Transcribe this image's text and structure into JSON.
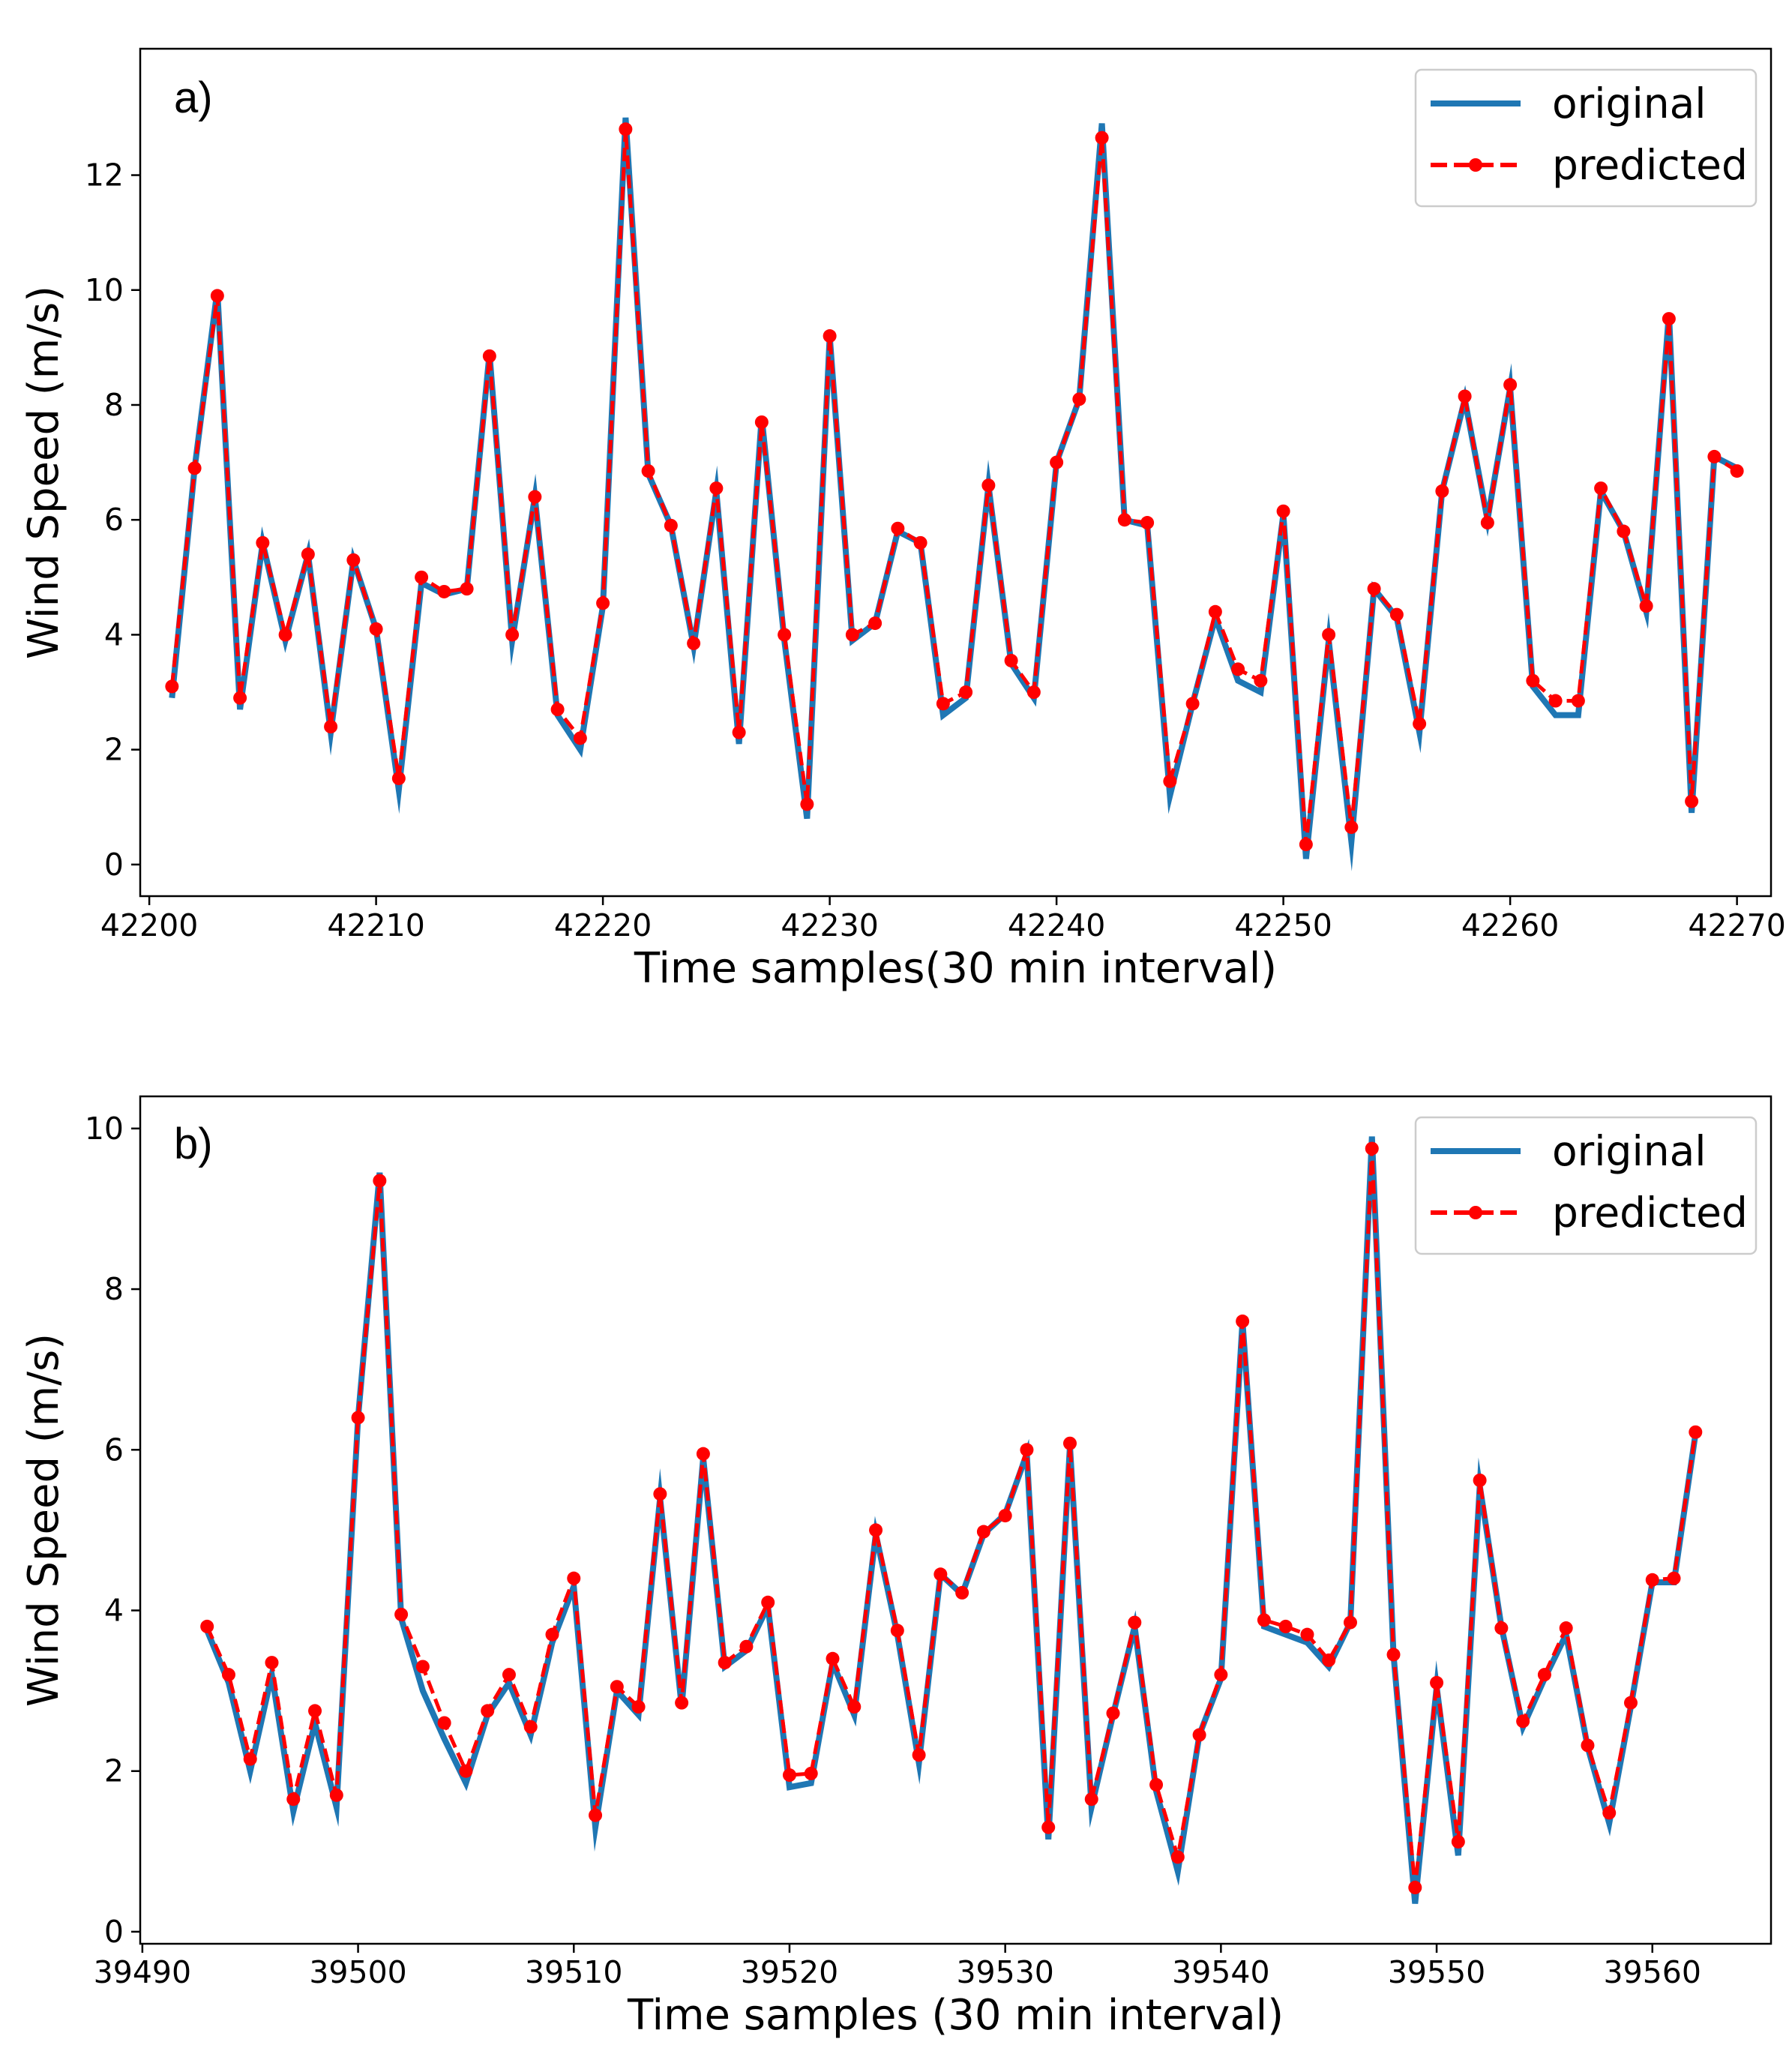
{
  "chart_data": [
    {
      "type": "line",
      "panel_label": "a)",
      "xlabel": "Time samples(30 min interval)",
      "ylabel": "Wind Speed (m/s)",
      "xlim": [
        42199.6,
        42271.5
      ],
      "ylim": [
        -0.55,
        14.2
      ],
      "xticks": [
        42200,
        42210,
        42220,
        42230,
        42240,
        42250,
        42260,
        42270
      ],
      "yticks": [
        0,
        2,
        4,
        6,
        8,
        10,
        12
      ],
      "legend": {
        "position": "top-right",
        "entries": [
          "original",
          "predicted"
        ]
      },
      "colors": {
        "original": "#1f77b4",
        "predicted": "#ff0000"
      },
      "x_start": 42201,
      "series": [
        {
          "name": "original",
          "values": [
            2.9,
            6.9,
            10.0,
            2.7,
            5.6,
            3.9,
            5.4,
            2.3,
            5.3,
            4.1,
            1.3,
            4.9,
            4.7,
            4.8,
            8.9,
            3.9,
            6.4,
            2.6,
            2.0,
            4.5,
            13.0,
            6.8,
            5.9,
            3.8,
            6.5,
            2.1,
            7.8,
            3.9,
            0.8,
            9.2,
            3.9,
            4.2,
            5.8,
            5.6,
            2.6,
            2.9,
            6.6,
            3.5,
            2.9,
            7.0,
            8.1,
            12.9,
            6.0,
            5.9,
            1.2,
            2.8,
            4.3,
            3.2,
            3.0,
            6.1,
            0.1,
            3.9,
            0.4,
            4.8,
            4.3,
            2.3,
            6.5,
            8.1,
            6.0,
            8.3,
            3.1,
            2.6,
            2.6,
            6.5,
            5.8,
            4.4,
            9.6,
            0.9,
            7.1,
            6.9
          ]
        },
        {
          "name": "predicted",
          "values": [
            3.1,
            6.9,
            9.9,
            2.9,
            5.6,
            4.0,
            5.4,
            2.4,
            5.3,
            4.1,
            1.5,
            5.0,
            4.75,
            4.8,
            8.85,
            4.0,
            6.4,
            2.7,
            2.2,
            4.55,
            12.8,
            6.85,
            5.9,
            3.85,
            6.55,
            2.3,
            7.7,
            4.0,
            1.05,
            9.2,
            4.0,
            4.2,
            5.85,
            5.6,
            2.8,
            3.0,
            6.6,
            3.55,
            3.0,
            7.0,
            8.1,
            12.65,
            6.0,
            5.95,
            1.45,
            2.8,
            4.4,
            3.4,
            3.2,
            6.15,
            0.35,
            4.0,
            0.65,
            4.8,
            4.35,
            2.45,
            6.5,
            8.15,
            5.95,
            8.35,
            3.2,
            2.85,
            2.85,
            6.55,
            5.8,
            4.5,
            9.5,
            1.1,
            7.1,
            6.85
          ]
        }
      ]
    },
    {
      "type": "line",
      "panel_label": "b)",
      "xlabel": "Time samples (30 min interval)",
      "ylabel": "Wind Speed (m/s)",
      "xlim": [
        39489.9,
        39565.5
      ],
      "ylim": [
        -0.15,
        10.4
      ],
      "xticks": [
        39490,
        39500,
        39510,
        39520,
        39530,
        39540,
        39550,
        39560
      ],
      "yticks": [
        0,
        2,
        4,
        6,
        8,
        10
      ],
      "legend": {
        "position": "top-right",
        "entries": [
          "original",
          "predicted"
        ]
      },
      "colors": {
        "original": "#1f77b4",
        "predicted": "#ff0000"
      },
      "x_start": 39493,
      "series": [
        {
          "name": "original",
          "values": [
            3.75,
            3.1,
            2.0,
            3.2,
            1.5,
            2.6,
            1.55,
            6.4,
            9.45,
            3.9,
            3.0,
            2.4,
            1.85,
            2.7,
            3.1,
            2.45,
            3.6,
            4.3,
            1.3,
            3.0,
            2.7,
            5.4,
            2.8,
            5.9,
            3.3,
            3.5,
            4.05,
            1.8,
            1.85,
            3.35,
            2.7,
            4.95,
            3.7,
            2.1,
            4.45,
            4.2,
            4.95,
            5.2,
            5.95,
            1.15,
            6.05,
            1.55,
            2.7,
            3.8,
            1.75,
            0.75,
            2.45,
            3.15,
            7.6,
            3.8,
            3.7,
            3.6,
            3.3,
            3.85,
            9.9,
            3.45,
            0.35,
            3.05,
            0.95,
            5.55,
            3.8,
            2.55,
            3.15,
            3.7,
            2.3,
            1.35,
            2.8,
            4.35,
            4.35,
            6.2
          ]
        },
        {
          "name": "predicted",
          "values": [
            3.8,
            3.2,
            2.15,
            3.35,
            1.65,
            2.75,
            1.7,
            6.4,
            9.35,
            3.95,
            3.3,
            2.6,
            2.0,
            2.75,
            3.2,
            2.55,
            3.7,
            4.4,
            1.45,
            3.05,
            2.8,
            5.45,
            2.85,
            5.95,
            3.35,
            3.55,
            4.1,
            1.95,
            1.97,
            3.4,
            2.8,
            5.0,
            3.75,
            2.2,
            4.45,
            4.22,
            4.98,
            5.18,
            6.0,
            1.3,
            6.08,
            1.65,
            2.72,
            3.85,
            1.83,
            0.93,
            2.45,
            3.2,
            7.6,
            3.88,
            3.8,
            3.7,
            3.38,
            3.85,
            9.75,
            3.45,
            0.55,
            3.1,
            1.12,
            5.62,
            3.78,
            2.62,
            3.2,
            3.78,
            2.32,
            1.48,
            2.85,
            4.38,
            4.4,
            6.22
          ]
        }
      ]
    }
  ]
}
